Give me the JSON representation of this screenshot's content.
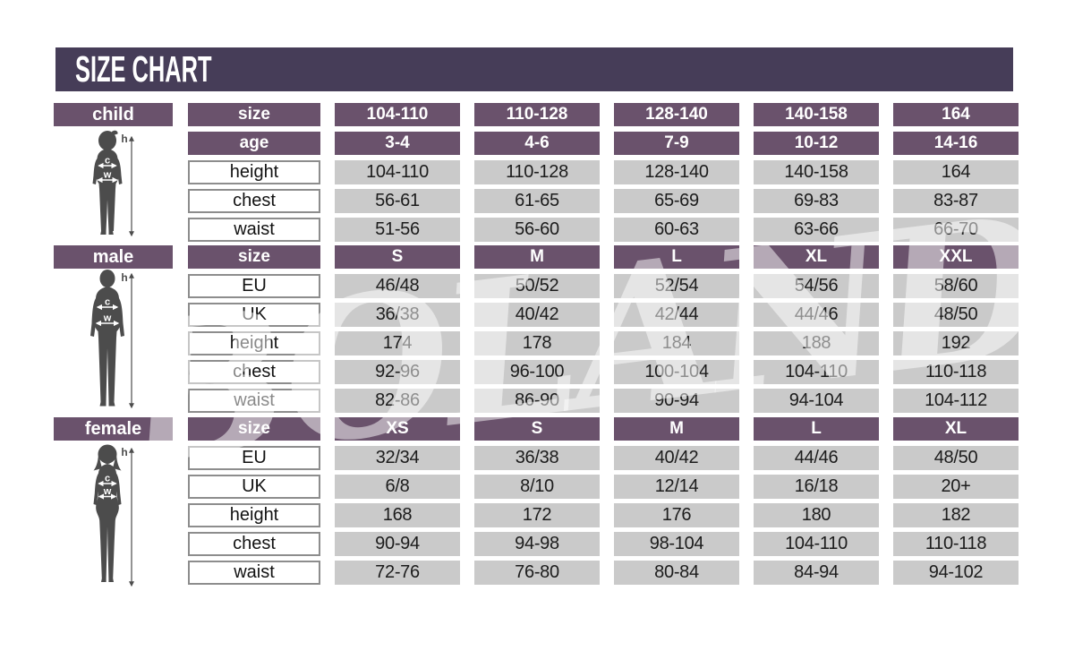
{
  "title": "SIZE CHART",
  "watermark": "BOLAND",
  "figure_labels": {
    "h": "h",
    "c": "c",
    "w": "w"
  },
  "colors": {
    "banner": "#463d58",
    "header": "#6a526c",
    "cell": "#cacaca"
  },
  "chart_data": [
    {
      "type": "table",
      "title": "child",
      "header_rows": [
        {
          "label": "size",
          "values": [
            "104-110",
            "110-128",
            "128-140",
            "140-158",
            "164"
          ]
        },
        {
          "label": "age",
          "values": [
            "3-4",
            "4-6",
            "7-9",
            "10-12",
            "14-16"
          ]
        }
      ],
      "data_rows": [
        {
          "label": "height",
          "values": [
            "104-110",
            "110-128",
            "128-140",
            "140-158",
            "164"
          ]
        },
        {
          "label": "chest",
          "values": [
            "56-61",
            "61-65",
            "65-69",
            "69-83",
            "83-87"
          ]
        },
        {
          "label": "waist",
          "values": [
            "51-56",
            "56-60",
            "60-63",
            "63-66",
            "66-70"
          ]
        }
      ]
    },
    {
      "type": "table",
      "title": "male",
      "header_rows": [
        {
          "label": "size",
          "values": [
            "S",
            "M",
            "L",
            "XL",
            "XXL"
          ]
        }
      ],
      "data_rows": [
        {
          "label": "EU",
          "values": [
            "46/48",
            "50/52",
            "52/54",
            "54/56",
            "58/60"
          ]
        },
        {
          "label": "UK",
          "values": [
            "36/38",
            "40/42",
            "42/44",
            "44/46",
            "48/50"
          ]
        },
        {
          "label": "height",
          "values": [
            "174",
            "178",
            "184",
            "188",
            "192"
          ]
        },
        {
          "label": "chest",
          "values": [
            "92-96",
            "96-100",
            "100-104",
            "104-110",
            "110-118"
          ]
        },
        {
          "label": "waist",
          "values": [
            "82-86",
            "86-90",
            "90-94",
            "94-104",
            "104-112"
          ]
        }
      ]
    },
    {
      "type": "table",
      "title": "female",
      "header_rows": [
        {
          "label": "size",
          "values": [
            "XS",
            "S",
            "M",
            "L",
            "XL"
          ]
        }
      ],
      "data_rows": [
        {
          "label": "EU",
          "values": [
            "32/34",
            "36/38",
            "40/42",
            "44/46",
            "48/50"
          ]
        },
        {
          "label": "UK",
          "values": [
            "6/8",
            "8/10",
            "12/14",
            "16/18",
            "20+"
          ]
        },
        {
          "label": "height",
          "values": [
            "168",
            "172",
            "176",
            "180",
            "182"
          ]
        },
        {
          "label": "chest",
          "values": [
            "90-94",
            "94-98",
            "98-104",
            "104-110",
            "110-118"
          ]
        },
        {
          "label": "waist",
          "values": [
            "72-76",
            "76-80",
            "80-84",
            "84-94",
            "94-102"
          ]
        }
      ]
    }
  ]
}
